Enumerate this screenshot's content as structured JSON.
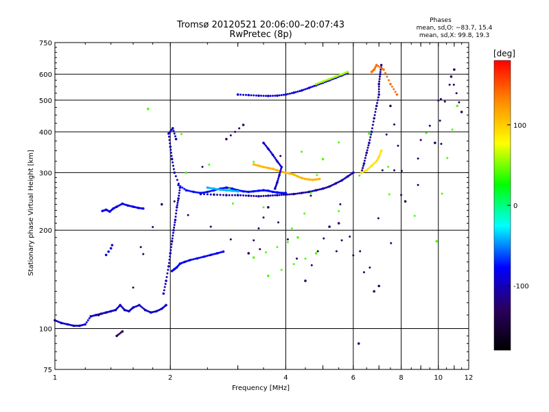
{
  "chart_data": {
    "type": "scatter",
    "title": "Tromsø 20120521 20:06:00–20:07:43",
    "subtitle": "RwPretec (8p)",
    "stats": {
      "header": "Phases",
      "line1": "mean, sd,O: −83.7, 15.4",
      "line2": "mean, sd,X:  99.8, 19.3"
    },
    "xlabel": "Frequency [MHz]",
    "ylabel": "Stationary phase Virtual Height [km]",
    "xscale": "log",
    "yscale": "log",
    "xlim": [
      1,
      12
    ],
    "ylim": [
      75,
      750
    ],
    "xticks": [
      1,
      2,
      4,
      6,
      8,
      10,
      12
    ],
    "yticks": [
      75,
      100,
      200,
      300,
      400,
      500,
      600,
      750
    ],
    "grid": true,
    "colorbar": {
      "label": "[deg]",
      "range": [
        -180,
        180
      ],
      "ticks": [
        100,
        0,
        -100
      ],
      "stops": [
        "#ff0000",
        "#ff8c00",
        "#ffff00",
        "#00ff00",
        "#00ffff",
        "#0000ff",
        "#2a0060",
        "#000000"
      ]
    },
    "series": [
      {
        "phase": -95,
        "x": [
          1.0,
          1.04,
          1.08,
          1.12,
          1.16,
          1.2,
          1.24,
          1.28,
          1.32,
          1.36,
          1.4,
          1.44,
          1.48,
          1.52,
          1.56,
          1.6,
          1.66,
          1.72,
          1.78,
          1.84,
          1.9,
          1.95
        ],
        "y": [
          106,
          104,
          103,
          102,
          102,
          103,
          109,
          110,
          111,
          112,
          113,
          114,
          118,
          114,
          113,
          116,
          118,
          114,
          112,
          113,
          115,
          118
        ]
      },
      {
        "phase": -85,
        "x": [
          1.33,
          1.36,
          1.39,
          1.42,
          1.45,
          1.5,
          1.55,
          1.6,
          1.65,
          1.7
        ],
        "y": [
          229,
          231,
          228,
          233,
          236,
          241,
          238,
          236,
          234,
          233
        ]
      },
      {
        "phase": -90,
        "x": [
          1.36,
          1.38,
          1.4,
          1.41
        ],
        "y": [
          168,
          172,
          176,
          180
        ]
      },
      {
        "phase": -100,
        "x": [
          1.92,
          1.95,
          1.98,
          2.0,
          2.02,
          2.04,
          2.06,
          2.08,
          2.1,
          2.12,
          2.05,
          2.02,
          2.0,
          1.98,
          2.03,
          2.07
        ],
        "y": [
          128,
          140,
          155,
          170,
          185,
          200,
          215,
          235,
          250,
          270,
          300,
          330,
          360,
          395,
          410,
          380
        ]
      },
      {
        "phase": -80,
        "x": [
          2.02,
          2.05,
          2.08,
          2.12,
          2.18,
          2.25,
          2.35,
          2.45,
          2.55,
          2.65,
          2.75
        ],
        "y": [
          150,
          152,
          154,
          158,
          160,
          162,
          164,
          166,
          168,
          170,
          172
        ]
      },
      {
        "phase": -75,
        "x": [
          2.1,
          2.2,
          2.3,
          2.4,
          2.5,
          2.6,
          2.7,
          2.8,
          2.9,
          3.0,
          3.1,
          3.2,
          3.3,
          3.4,
          3.5,
          3.6,
          3.7,
          3.8,
          3.9,
          4.0
        ],
        "y": [
          275,
          265,
          262,
          260,
          262,
          265,
          268,
          270,
          268,
          265,
          263,
          262,
          263,
          264,
          265,
          264,
          262,
          261,
          260,
          260
        ]
      },
      {
        "phase": -105,
        "x": [
          2.4,
          2.6,
          2.8,
          3.0,
          3.2,
          3.4,
          3.6,
          3.8,
          4.0,
          4.2,
          4.4,
          4.6,
          4.8,
          5.0,
          5.2,
          5.4,
          5.6,
          5.8,
          6.0
        ],
        "y": [
          258,
          257,
          256,
          256,
          255,
          254,
          255,
          256,
          257,
          258,
          260,
          262,
          265,
          268,
          272,
          278,
          284,
          292,
          300
        ]
      },
      {
        "phase": -90,
        "x": [
          3.0,
          3.2,
          3.4,
          3.6,
          3.8,
          4.0,
          4.2,
          4.4,
          4.6,
          4.8,
          5.0,
          5.2,
          5.4,
          5.6,
          5.8
        ],
        "y": [
          520,
          518,
          516,
          515,
          516,
          520,
          527,
          535,
          545,
          555,
          565,
          575,
          585,
          595,
          605
        ]
      },
      {
        "phase": 110,
        "x": [
          3.3,
          3.4,
          3.5,
          3.6,
          3.7,
          3.8,
          3.9,
          4.0,
          4.1,
          4.2,
          4.3,
          4.4,
          4.5,
          4.6,
          4.7,
          4.8,
          4.9
        ],
        "y": [
          318,
          315,
          312,
          310,
          308,
          305,
          302,
          300,
          298,
          296,
          292,
          289,
          287,
          286,
          285,
          286,
          287
        ]
      },
      {
        "phase": -95,
        "x": [
          3.5,
          3.6,
          3.7,
          3.8,
          3.9,
          3.85,
          3.8,
          3.75
        ],
        "y": [
          370,
          355,
          340,
          325,
          312,
          295,
          280,
          268
        ]
      },
      {
        "phase": -110,
        "x": [
          6.3,
          6.4,
          6.5,
          6.6,
          6.7,
          6.8,
          6.9,
          7.0,
          7.0,
          7.05,
          7.1
        ],
        "y": [
          300,
          320,
          345,
          370,
          400,
          440,
          480,
          520,
          560,
          600,
          640
        ]
      },
      {
        "phase": 90,
        "x": [
          6.3,
          6.5,
          6.7,
          6.9,
          7.0,
          7.1
        ],
        "y": [
          300,
          305,
          315,
          325,
          335,
          350
        ]
      },
      {
        "phase": 140,
        "x": [
          6.7,
          6.8,
          6.9,
          7.2,
          7.5,
          7.8
        ],
        "y": [
          610,
          620,
          640,
          620,
          560,
          520
        ]
      },
      {
        "phase": 60,
        "x": [
          4.8,
          5.0,
          5.2,
          5.4,
          5.6,
          5.8
        ],
        "y": [
          560,
          570,
          580,
          590,
          600,
          610
        ]
      },
      {
        "phase": -40,
        "x": [
          2.5,
          2.6,
          2.7,
          2.8,
          2.9,
          3.0
        ],
        "y": [
          270,
          268,
          266,
          265,
          264,
          263
        ]
      },
      {
        "phase": -130,
        "x": [
          1.45,
          1.5,
          1.9,
          3.2,
          3.6,
          4.5,
          5.2,
          6.8,
          7.5,
          8.2,
          10.8,
          11.5,
          6.2,
          3.1,
          2.8,
          1.3,
          9.8,
          11.0,
          7.0,
          5.5
        ],
        "y": [
          95,
          98,
          240,
          170,
          235,
          140,
          205,
          130,
          480,
          245,
          590,
          460,
          90,
          420,
          380,
          110,
          370,
          620,
          135,
          210
        ]
      },
      {
        "phase": 40,
        "x": [
          1.75,
          3.3,
          4.3,
          5.0,
          9.9,
          11.2,
          3.6,
          4.8,
          2.2,
          6.6
        ],
        "y": [
          470,
          165,
          190,
          330,
          185,
          480,
          145,
          170,
          300,
          395
        ]
      }
    ]
  }
}
